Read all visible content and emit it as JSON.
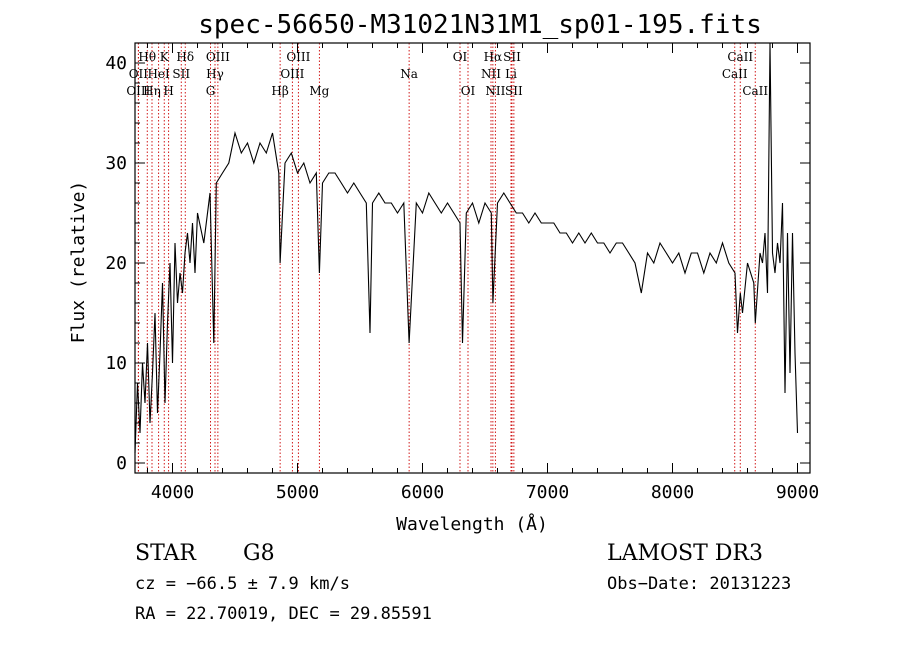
{
  "chart_data": {
    "type": "line",
    "title": "spec-56650-M31021N31M1_sp01-195.fits",
    "xlabel": "Wavelength (Å)",
    "ylabel": "Flux (relative)",
    "xlim": [
      3700,
      9100
    ],
    "ylim": [
      -1,
      42
    ],
    "xticks": [
      4000,
      5000,
      6000,
      7000,
      8000,
      9000
    ],
    "yticks": [
      0,
      10,
      20,
      30,
      40
    ],
    "series": [
      {
        "name": "flux",
        "color": "#000000",
        "x": [
          3700,
          3720,
          3740,
          3760,
          3780,
          3800,
          3820,
          3840,
          3860,
          3880,
          3900,
          3920,
          3940,
          3960,
          3980,
          4000,
          4020,
          4040,
          4060,
          4080,
          4100,
          4120,
          4140,
          4160,
          4180,
          4200,
          4250,
          4300,
          4330,
          4350,
          4400,
          4450,
          4500,
          4550,
          4600,
          4650,
          4700,
          4750,
          4800,
          4850,
          4861,
          4900,
          4950,
          5000,
          5050,
          5100,
          5150,
          5175,
          5200,
          5250,
          5300,
          5350,
          5400,
          5450,
          5500,
          5550,
          5580,
          5600,
          5650,
          5700,
          5750,
          5800,
          5850,
          5893,
          5950,
          6000,
          6050,
          6100,
          6150,
          6200,
          6250,
          6300,
          6320,
          6350,
          6400,
          6450,
          6500,
          6550,
          6563,
          6600,
          6650,
          6700,
          6750,
          6800,
          6850,
          6900,
          6950,
          7000,
          7050,
          7100,
          7150,
          7200,
          7250,
          7300,
          7350,
          7400,
          7450,
          7500,
          7550,
          7600,
          7650,
          7700,
          7750,
          7800,
          7850,
          7900,
          7950,
          8000,
          8050,
          8100,
          8150,
          8200,
          8250,
          8300,
          8350,
          8400,
          8450,
          8500,
          8520,
          8542,
          8560,
          8600,
          8650,
          8662,
          8700,
          8720,
          8740,
          8760,
          8780,
          8800,
          8820,
          8840,
          8860,
          8880,
          8900,
          8920,
          8940,
          8960,
          8980,
          9000
        ],
        "y": [
          1,
          8,
          3,
          10,
          6,
          12,
          4,
          9,
          15,
          5,
          11,
          18,
          6,
          14,
          20,
          10,
          22,
          16,
          19,
          17,
          21,
          23,
          20,
          24,
          19,
          25,
          22,
          27,
          12,
          28,
          29,
          30,
          33,
          31,
          32,
          30,
          32,
          31,
          33,
          29,
          20,
          30,
          31,
          29,
          30,
          28,
          29,
          19,
          28,
          29,
          29,
          28,
          27,
          28,
          27,
          26,
          13,
          26,
          27,
          26,
          26,
          25,
          26,
          12,
          26,
          25,
          27,
          26,
          25,
          26,
          25,
          24,
          12,
          25,
          26,
          24,
          26,
          25,
          16,
          26,
          27,
          26,
          25,
          25,
          24,
          25,
          24,
          24,
          24,
          23,
          23,
          22,
          23,
          22,
          23,
          22,
          22,
          21,
          22,
          22,
          21,
          20,
          17,
          21,
          20,
          22,
          21,
          20,
          21,
          19,
          21,
          21,
          19,
          21,
          20,
          22,
          20,
          19,
          13,
          17,
          15,
          20,
          18,
          14,
          21,
          20,
          23,
          17,
          42,
          21,
          19,
          22,
          20,
          26,
          7,
          23,
          9,
          23,
          11,
          3
        ]
      }
    ],
    "emission_lines": [
      {
        "label": "Hθ",
        "x": 3798,
        "row": 0
      },
      {
        "label": "OII",
        "x": 3727,
        "row": 1
      },
      {
        "label": "OIII",
        "x": 3727,
        "row": 2
      },
      {
        "label": "Hη",
        "x": 3836,
        "row": 2
      },
      {
        "label": "K",
        "x": 3934,
        "row": 0
      },
      {
        "label": "HeI",
        "x": 3889,
        "row": 1
      },
      {
        "label": "SII",
        "x": 4070,
        "row": 1
      },
      {
        "label": "H",
        "x": 3969,
        "row": 2
      },
      {
        "label": "Hδ",
        "x": 4102,
        "row": 0
      },
      {
        "label": "OIII",
        "x": 4363,
        "row": 0
      },
      {
        "label": "Hγ",
        "x": 4340,
        "row": 1
      },
      {
        "label": "G",
        "x": 4304,
        "row": 2
      },
      {
        "label": "OIII",
        "x": 5007,
        "row": 0
      },
      {
        "label": "OIII",
        "x": 4959,
        "row": 1
      },
      {
        "label": "Hβ",
        "x": 4861,
        "row": 2
      },
      {
        "label": "Mg",
        "x": 5175,
        "row": 2
      },
      {
        "label": "Na",
        "x": 5893,
        "row": 1
      },
      {
        "label": "OI",
        "x": 6300,
        "row": 0
      },
      {
        "label": "OI",
        "x": 6364,
        "row": 2
      },
      {
        "label": "Hα",
        "x": 6563,
        "row": 0
      },
      {
        "label": "SII",
        "x": 6716,
        "row": 0
      },
      {
        "label": "NII",
        "x": 6548,
        "row": 1
      },
      {
        "label": "Li",
        "x": 6708,
        "row": 1
      },
      {
        "label": "NII",
        "x": 6583,
        "row": 2
      },
      {
        "label": "SII",
        "x": 6731,
        "row": 2
      },
      {
        "label": "CaII",
        "x": 8542,
        "row": 0
      },
      {
        "label": "CaII",
        "x": 8498,
        "row": 1
      },
      {
        "label": "CaII",
        "x": 8662,
        "row": 2
      }
    ],
    "line_color": "#cc0000"
  },
  "info": {
    "class": "STAR",
    "subclass": "G8",
    "survey": "LAMOST DR3",
    "cz": "cz = −66.5 ± 7.9 km/s",
    "obs_date": "Obs−Date: 20131223",
    "coords": "RA =  22.70019, DEC =  29.85591"
  }
}
